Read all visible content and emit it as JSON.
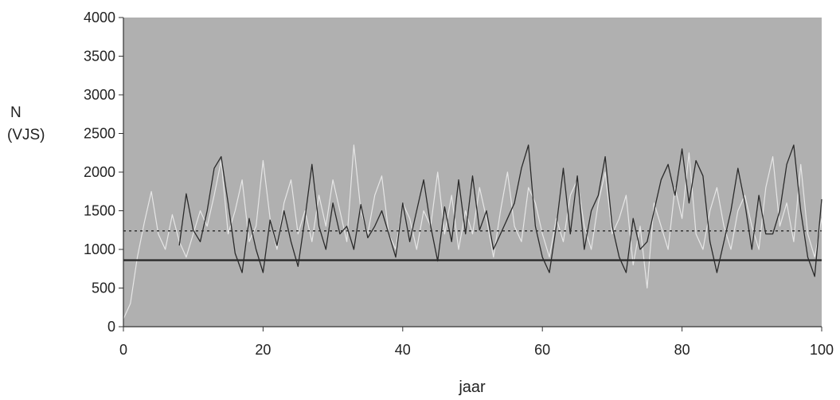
{
  "chart_data": {
    "type": "line",
    "title": "",
    "ylabel_line1": "N",
    "ylabel_line2": "(VJS)",
    "xlabel": "jaar",
    "xlim": [
      0,
      100
    ],
    "ylim": [
      0,
      4000
    ],
    "xticks": [
      0,
      20,
      40,
      60,
      80,
      100
    ],
    "yticks": [
      0,
      500,
      1000,
      1500,
      2000,
      2500,
      3000,
      3500,
      4000
    ],
    "grid": false,
    "plot_background": "#b0b0b0",
    "series": [
      {
        "style": "solid-dark",
        "color": "#2a2a2a",
        "x": [
          8,
          9,
          10,
          11,
          12,
          13,
          14,
          15,
          16,
          17,
          18,
          19,
          20,
          21,
          22,
          23,
          24,
          25,
          26,
          27,
          28,
          29,
          30,
          31,
          32,
          33,
          34,
          35,
          36,
          37,
          38,
          39,
          40,
          41,
          42,
          43,
          44,
          45,
          46,
          47,
          48,
          49,
          50,
          51,
          52,
          53,
          54,
          55,
          56,
          57,
          58,
          59,
          60,
          61,
          62,
          63,
          64,
          65,
          66,
          67,
          68,
          69,
          70,
          71,
          72,
          73,
          74,
          75,
          76,
          77,
          78,
          79,
          80,
          81,
          82,
          83,
          84,
          85,
          86,
          87,
          88,
          89,
          90,
          91,
          92,
          93,
          94,
          95,
          96,
          97,
          98,
          99,
          100
        ],
        "values": [
          1050,
          1720,
          1250,
          1100,
          1500,
          2050,
          2200,
          1600,
          950,
          700,
          1400,
          1000,
          700,
          1380,
          1050,
          1500,
          1100,
          780,
          1400,
          2100,
          1300,
          1000,
          1600,
          1200,
          1300,
          1000,
          1580,
          1150,
          1300,
          1500,
          1200,
          900,
          1600,
          1100,
          1500,
          1900,
          1300,
          850,
          1550,
          1100,
          1900,
          1200,
          1950,
          1250,
          1500,
          1000,
          1200,
          1400,
          1600,
          2050,
          2350,
          1300,
          900,
          700,
          1300,
          2050,
          1200,
          1950,
          1000,
          1500,
          1700,
          2200,
          1300,
          900,
          700,
          1400,
          1000,
          1100,
          1500,
          1900,
          2100,
          1700,
          2300,
          1600,
          2150,
          1950,
          1100,
          700,
          1100,
          1500,
          2050,
          1600,
          1000,
          1700,
          1200,
          1200,
          1500,
          2100,
          2350,
          1500,
          900,
          650,
          1650
        ]
      },
      {
        "style": "solid-light",
        "color": "#e6e6e6",
        "x": [
          0,
          1,
          2,
          3,
          4,
          5,
          6,
          7,
          8,
          9,
          10,
          11,
          12,
          13,
          14,
          15,
          16,
          17,
          18,
          19,
          20,
          21,
          22,
          23,
          24,
          25,
          26,
          27,
          28,
          29,
          30,
          31,
          32,
          33,
          34,
          35,
          36,
          37,
          38,
          39,
          40,
          41,
          42,
          43,
          44,
          45,
          46,
          47,
          48,
          49,
          50,
          51,
          52,
          53,
          54,
          55,
          56,
          57,
          58,
          59,
          60,
          61,
          62,
          63,
          64,
          65,
          66,
          67,
          68,
          69,
          70,
          71,
          72,
          73,
          74,
          75,
          76,
          77,
          78,
          79,
          80,
          81,
          82,
          83,
          84,
          85,
          86,
          87,
          88,
          89,
          90,
          91,
          92,
          93,
          94,
          95,
          96,
          97,
          98,
          99,
          100
        ],
        "values": [
          100,
          300,
          900,
          1350,
          1750,
          1200,
          1000,
          1450,
          1100,
          900,
          1200,
          1500,
          1300,
          1700,
          2150,
          1200,
          1500,
          1900,
          1100,
          1300,
          2150,
          1400,
          1000,
          1600,
          1900,
          1200,
          1500,
          1100,
          1700,
          1300,
          1900,
          1500,
          1100,
          2350,
          1500,
          1200,
          1700,
          1950,
          1200,
          1000,
          1600,
          1400,
          1000,
          1500,
          1300,
          2000,
          1200,
          1700,
          1000,
          1500,
          1200,
          1800,
          1400,
          900,
          1500,
          2000,
          1300,
          1100,
          1800,
          1600,
          1200,
          900,
          1400,
          1100,
          1700,
          1900,
          1300,
          1000,
          1600,
          2000,
          1200,
          1400,
          1700,
          800,
          1300,
          500,
          1600,
          1300,
          1000,
          1800,
          1400,
          2250,
          1200,
          1000,
          1500,
          1800,
          1300,
          1000,
          1500,
          1700,
          1300,
          1000,
          1800,
          2200,
          1300,
          1600,
          1100,
          2100,
          1200,
          900,
          1400
        ]
      },
      {
        "style": "dotted-threshold",
        "color": "#333333",
        "x": [
          0,
          100
        ],
        "values": [
          1240,
          1240
        ]
      },
      {
        "style": "solid-threshold",
        "color": "#2a2a2a",
        "x": [
          0,
          100
        ],
        "values": [
          860,
          860
        ]
      }
    ]
  }
}
